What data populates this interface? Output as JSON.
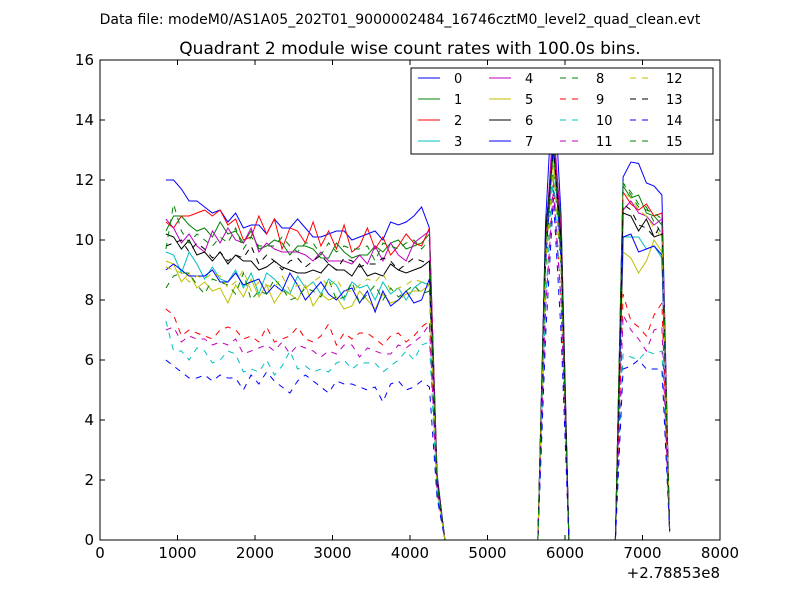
{
  "suptitle": "Data file: modeM0/AS1A05_202T01_9000002484_16746cztM0_level2_quad_clean.evt",
  "chart_data": {
    "type": "line",
    "title": "Quadrant 2 module wise count rates with 100.0s bins.",
    "xlabel": "",
    "ylabel": "",
    "x_offset_label": "+2.78853e8",
    "xlim": [
      0,
      8000
    ],
    "ylim": [
      0,
      16
    ],
    "xticks": [
      0,
      1000,
      2000,
      3000,
      4000,
      5000,
      6000,
      7000,
      8000
    ],
    "yticks": [
      0,
      2,
      4,
      6,
      8,
      10,
      12,
      14,
      16
    ],
    "legend_position": "top-right",
    "x": [
      850,
      950,
      1050,
      1150,
      1250,
      1350,
      1450,
      1550,
      1650,
      1750,
      1850,
      1950,
      2050,
      2150,
      2250,
      2350,
      2450,
      2550,
      2650,
      2750,
      2850,
      2950,
      3050,
      3150,
      3250,
      3350,
      3450,
      3550,
      3650,
      3750,
      3850,
      3950,
      4050,
      4150,
      4250,
      4350,
      4450,
      4550,
      4650,
      4750,
      4850,
      4950,
      5050,
      5150,
      5250,
      5350,
      5450,
      5550,
      5650,
      5750,
      5850,
      5950,
      6050,
      6150,
      6250,
      6350,
      6450,
      6550,
      6650,
      6750,
      6850,
      6950,
      7050,
      7150,
      7250,
      7350
    ],
    "series": [
      {
        "name": "0",
        "color": "#0000ff",
        "dash": "solid",
        "values": [
          12.0,
          12.0,
          11.7,
          11.3,
          11.3,
          11.1,
          10.9,
          11.0,
          10.6,
          10.9,
          10.4,
          10.5,
          10.5,
          10.2,
          10.7,
          10.4,
          10.4,
          10.7,
          10.4,
          10.1,
          10.1,
          10.2,
          10.3,
          10.3,
          10.0,
          10.1,
          10.2,
          10.3,
          10.0,
          10.6,
          10.5,
          10.6,
          10.8,
          11.1,
          10.4,
          2.2,
          0.0,
          0.0,
          0.0,
          0.0,
          0.0,
          0.0,
          0.0,
          0.0,
          0.0,
          0.0,
          0.0,
          0.0,
          0.0,
          10.6,
          15.5,
          10.8,
          0.0,
          0.0,
          0.0,
          0.0,
          0.0,
          0.0,
          0.0,
          12.1,
          12.6,
          12.55,
          11.9,
          11.8,
          11.5,
          0.35
        ]
      },
      {
        "name": "1",
        "color": "#008000",
        "dash": "solid",
        "values": [
          10.3,
          10.8,
          10.8,
          10.5,
          10.3,
          10.4,
          10.1,
          10.6,
          10.2,
          10.3,
          9.9,
          10.3,
          9.7,
          9.8,
          10.0,
          9.9,
          9.5,
          9.8,
          9.8,
          9.7,
          9.4,
          9.4,
          9.9,
          9.6,
          9.4,
          9.5,
          9.5,
          9.8,
          9.6,
          9.9,
          10.0,
          9.7,
          9.8,
          9.9,
          10.2,
          2.0,
          0.0,
          0.0,
          0.0,
          0.0,
          0.0,
          0.0,
          0.0,
          0.0,
          0.0,
          0.0,
          0.0,
          0.0,
          0.0,
          10.1,
          13.5,
          10.6,
          0.0,
          0.0,
          0.0,
          0.0,
          0.0,
          0.0,
          0.0,
          11.8,
          11.4,
          11.5,
          10.9,
          10.8,
          10.5,
          0.3
        ]
      },
      {
        "name": "2",
        "color": "#ff0000",
        "dash": "solid",
        "values": [
          10.6,
          10.4,
          10.8,
          10.8,
          10.9,
          11.0,
          10.8,
          11.0,
          10.5,
          10.7,
          10.0,
          10.1,
          10.8,
          10.2,
          10.7,
          9.7,
          10.4,
          10.3,
          9.9,
          10.6,
          9.8,
          10.3,
          9.7,
          10.5,
          9.6,
          9.8,
          10.4,
          9.7,
          10.1,
          9.5,
          9.8,
          10.2,
          9.9,
          9.8,
          10.4,
          2.1,
          0.0,
          0.0,
          0.0,
          0.0,
          0.0,
          0.0,
          0.0,
          0.0,
          0.0,
          0.0,
          0.0,
          0.0,
          0.0,
          10.0,
          13.5,
          10.3,
          0.0,
          0.0,
          0.0,
          0.0,
          0.0,
          0.0,
          0.0,
          11.6,
          11.2,
          11.0,
          11.2,
          10.8,
          10.9,
          0.3
        ]
      },
      {
        "name": "3",
        "color": "#00bfbf",
        "dash": "solid",
        "values": [
          9.6,
          9.5,
          8.9,
          9.6,
          9.2,
          8.7,
          9.1,
          8.7,
          8.6,
          9.0,
          8.4,
          8.9,
          8.2,
          8.9,
          8.7,
          8.4,
          8.2,
          8.8,
          8.4,
          8.6,
          8.2,
          8.7,
          8.5,
          8.0,
          8.6,
          8.4,
          8.5,
          8.0,
          8.6,
          8.2,
          8.4,
          8.0,
          8.4,
          8.6,
          8.5,
          1.9,
          0.0,
          0.0,
          0.0,
          0.0,
          0.0,
          0.0,
          0.0,
          0.0,
          0.0,
          0.0,
          0.0,
          0.0,
          0.0,
          9.4,
          13.0,
          9.5,
          0.0,
          0.0,
          0.0,
          0.0,
          0.0,
          0.0,
          0.0,
          10.1,
          10.1,
          10.1,
          9.7,
          9.8,
          9.4,
          0.25
        ]
      },
      {
        "name": "4",
        "color": "#bf00bf",
        "dash": "solid",
        "values": [
          10.7,
          10.4,
          9.9,
          10.2,
          9.8,
          9.6,
          10.3,
          9.9,
          10.4,
          10.0,
          9.9,
          10.4,
          9.6,
          9.9,
          9.7,
          9.6,
          9.6,
          9.6,
          9.5,
          9.3,
          9.6,
          9.3,
          9.3,
          9.3,
          9.2,
          9.5,
          9.2,
          9.8,
          9.3,
          9.9,
          9.5,
          9.3,
          9.9,
          10.1,
          10.3,
          2.0,
          0.0,
          0.0,
          0.0,
          0.0,
          0.0,
          0.0,
          0.0,
          0.0,
          0.0,
          0.0,
          0.0,
          0.0,
          0.0,
          9.9,
          14.0,
          10.2,
          0.0,
          0.0,
          0.0,
          0.0,
          0.0,
          0.0,
          0.0,
          11.0,
          11.3,
          10.9,
          10.8,
          10.5,
          10.7,
          0.3
        ]
      },
      {
        "name": "5",
        "color": "#bfbf00",
        "dash": "solid",
        "values": [
          9.3,
          9.2,
          8.6,
          8.9,
          8.4,
          8.6,
          8.3,
          8.4,
          7.9,
          8.5,
          8.1,
          8.7,
          8.1,
          8.5,
          7.9,
          8.3,
          8.2,
          8.0,
          8.5,
          7.8,
          8.2,
          8.0,
          8.1,
          7.7,
          7.8,
          8.3,
          8.0,
          7.7,
          8.2,
          7.9,
          8.0,
          8.2,
          8.3,
          8.3,
          8.5,
          1.8,
          0.0,
          0.0,
          0.0,
          0.0,
          0.0,
          0.0,
          0.0,
          0.0,
          0.0,
          0.0,
          0.0,
          0.0,
          0.0,
          9.7,
          12.8,
          9.6,
          0.0,
          0.0,
          0.0,
          0.0,
          0.0,
          0.0,
          0.0,
          9.6,
          9.4,
          8.9,
          9.3,
          10.0,
          9.6,
          0.3
        ]
      },
      {
        "name": "6",
        "color": "#000000",
        "dash": "solid",
        "values": [
          10.2,
          10.1,
          9.7,
          10.0,
          9.5,
          9.6,
          9.3,
          9.6,
          9.2,
          9.5,
          9.3,
          9.3,
          9.0,
          9.1,
          9.3,
          9.1,
          9.0,
          8.9,
          8.9,
          9.0,
          8.9,
          9.2,
          9.0,
          9.0,
          8.8,
          9.2,
          8.8,
          8.9,
          8.8,
          9.2,
          9.0,
          8.9,
          9.0,
          9.1,
          9.3,
          2.0,
          0.0,
          0.0,
          0.0,
          0.0,
          0.0,
          0.0,
          0.0,
          0.0,
          0.0,
          0.0,
          0.0,
          0.0,
          0.0,
          10.3,
          13.0,
          10.0,
          0.0,
          0.0,
          0.0,
          0.0,
          0.0,
          0.0,
          0.0,
          10.9,
          10.8,
          10.3,
          10.7,
          10.1,
          10.2,
          0.3
        ]
      },
      {
        "name": "7",
        "color": "#0000ff",
        "dash": "solid",
        "values": [
          9.0,
          9.2,
          9.0,
          8.8,
          8.8,
          8.8,
          9.0,
          8.6,
          8.6,
          8.9,
          8.5,
          8.6,
          8.7,
          8.2,
          8.5,
          8.3,
          8.9,
          8.5,
          8.0,
          8.3,
          8.6,
          8.2,
          8.0,
          8.3,
          8.4,
          7.9,
          8.3,
          7.6,
          8.3,
          7.8,
          8.0,
          8.3,
          7.9,
          8.0,
          8.7,
          1.9,
          0.0,
          0.0,
          0.0,
          0.0,
          0.0,
          0.0,
          0.0,
          0.0,
          0.0,
          0.0,
          0.0,
          0.0,
          0.0,
          9.2,
          13.3,
          9.3,
          0.0,
          0.0,
          0.0,
          0.0,
          0.0,
          0.0,
          0.0,
          10.1,
          10.2,
          9.6,
          9.7,
          9.8,
          9.5,
          0.3
        ]
      },
      {
        "name": "8",
        "color": "#008000",
        "dash": "dashed",
        "values": [
          8.4,
          8.8,
          8.9,
          8.9,
          8.5,
          8.2,
          8.7,
          8.6,
          8.5,
          8.2,
          8.9,
          8.0,
          8.3,
          8.2,
          8.7,
          8.4,
          8.0,
          8.1,
          8.4,
          8.3,
          8.1,
          8.7,
          8.0,
          8.1,
          8.6,
          7.9,
          8.2,
          8.5,
          8.0,
          8.4,
          8.1,
          8.3,
          8.5,
          8.2,
          8.3,
          1.8,
          0.0,
          0.0,
          0.0,
          0.0,
          0.0,
          0.0,
          0.0,
          0.0,
          0.0,
          0.0,
          0.0,
          0.0,
          0.0,
          9.0,
          12.5,
          9.0,
          0.0,
          0.0,
          0.0,
          0.0,
          0.0,
          0.0,
          0.0,
          11.9,
          11.6,
          11.2,
          11.1,
          10.6,
          10.2,
          0.3
        ]
      },
      {
        "name": "9",
        "color": "#ff0000",
        "dash": "dashed",
        "values": [
          7.7,
          7.5,
          6.8,
          7.0,
          6.9,
          6.8,
          6.7,
          7.0,
          7.1,
          7.0,
          6.7,
          6.8,
          6.6,
          7.1,
          6.6,
          6.7,
          6.8,
          7.1,
          6.7,
          6.6,
          6.8,
          7.2,
          6.5,
          6.9,
          6.7,
          6.9,
          6.9,
          6.7,
          6.5,
          6.8,
          6.9,
          6.6,
          6.8,
          7.1,
          7.3,
          1.6,
          0.0,
          0.0,
          0.0,
          0.0,
          0.0,
          0.0,
          0.0,
          0.0,
          0.0,
          0.0,
          0.0,
          0.0,
          0.0,
          7.9,
          12.0,
          8.0,
          0.0,
          0.0,
          0.0,
          0.0,
          0.0,
          0.0,
          0.0,
          8.2,
          7.3,
          7.1,
          6.8,
          7.5,
          7.9,
          0.3
        ]
      },
      {
        "name": "10",
        "color": "#00bfbf",
        "dash": "dashed",
        "values": [
          7.3,
          6.3,
          6.3,
          6.0,
          6.4,
          6.3,
          5.9,
          6.0,
          6.3,
          6.2,
          5.6,
          5.7,
          5.6,
          6.0,
          5.5,
          5.8,
          6.3,
          5.7,
          5.8,
          5.6,
          5.7,
          5.6,
          5.9,
          6.0,
          5.7,
          5.9,
          5.9,
          5.9,
          5.6,
          5.8,
          6.0,
          6.3,
          6.0,
          6.5,
          6.6,
          1.5,
          0.0,
          0.0,
          0.0,
          0.0,
          0.0,
          0.0,
          0.0,
          0.0,
          0.0,
          0.0,
          0.0,
          0.0,
          0.0,
          8.0,
          12.2,
          7.9,
          0.0,
          0.0,
          0.0,
          0.0,
          0.0,
          0.0,
          0.0,
          6.2,
          6.1,
          6.0,
          6.3,
          6.2,
          6.3,
          0.3
        ]
      },
      {
        "name": "11",
        "color": "#bf00bf",
        "dash": "dashed",
        "values": [
          7.0,
          7.1,
          6.6,
          6.8,
          6.7,
          6.7,
          6.5,
          6.6,
          6.5,
          6.7,
          6.2,
          6.3,
          6.4,
          6.5,
          6.3,
          6.6,
          6.2,
          6.5,
          6.4,
          6.3,
          6.1,
          6.3,
          6.2,
          6.5,
          6.5,
          6.1,
          6.4,
          6.3,
          6.2,
          6.2,
          6.5,
          6.4,
          6.6,
          6.8,
          7.2,
          1.6,
          0.0,
          0.0,
          0.0,
          0.0,
          0.0,
          0.0,
          0.0,
          0.0,
          0.0,
          0.0,
          0.0,
          0.0,
          0.0,
          7.7,
          11.7,
          7.9,
          0.0,
          0.0,
          0.0,
          0.0,
          0.0,
          0.0,
          0.0,
          7.5,
          7.0,
          6.7,
          6.3,
          7.0,
          7.1,
          0.3
        ]
      },
      {
        "name": "12",
        "color": "#bfbf00",
        "dash": "dashed",
        "values": [
          9.1,
          9.0,
          8.9,
          8.6,
          8.8,
          8.7,
          8.9,
          8.8,
          8.4,
          8.6,
          9.0,
          8.3,
          8.6,
          8.5,
          8.4,
          8.8,
          8.3,
          8.5,
          8.4,
          8.6,
          8.8,
          8.4,
          8.7,
          8.3,
          8.3,
          8.5,
          8.7,
          8.6,
          8.9,
          8.3,
          8.4,
          8.5,
          8.7,
          8.6,
          8.5,
          1.8,
          0.0,
          0.0,
          0.0,
          0.0,
          0.0,
          0.0,
          0.0,
          0.0,
          0.0,
          0.0,
          0.0,
          0.0,
          0.0,
          9.3,
          12.5,
          9.2,
          0.0,
          0.0,
          0.0,
          0.0,
          0.0,
          0.0,
          0.0,
          11.6,
          11.4,
          11.0,
          10.8,
          10.4,
          10.1,
          0.3
        ]
      },
      {
        "name": "13",
        "color": "#000000",
        "dash": "dashed",
        "values": [
          9.8,
          9.9,
          10.0,
          9.6,
          9.9,
          9.7,
          9.4,
          9.6,
          9.3,
          9.5,
          9.4,
          9.8,
          9.2,
          9.5,
          9.3,
          9.0,
          9.3,
          9.4,
          9.1,
          9.3,
          9.5,
          9.2,
          9.0,
          9.4,
          9.3,
          9.1,
          9.2,
          9.2,
          9.4,
          9.3,
          9.0,
          9.2,
          9.4,
          9.3,
          9.2,
          1.9,
          0.0,
          0.0,
          0.0,
          0.0,
          0.0,
          0.0,
          0.0,
          0.0,
          0.0,
          0.0,
          0.0,
          0.0,
          0.0,
          10.0,
          13.2,
          10.0,
          0.0,
          0.0,
          0.0,
          0.0,
          0.0,
          0.0,
          0.0,
          11.2,
          11.0,
          10.5,
          10.4,
          10.1,
          10.6,
          0.3
        ]
      },
      {
        "name": "14",
        "color": "#0000ff",
        "dash": "dashed",
        "values": [
          6.0,
          5.8,
          5.6,
          5.4,
          5.4,
          5.5,
          5.3,
          5.5,
          5.4,
          5.4,
          5.0,
          5.5,
          5.2,
          5.6,
          5.3,
          5.1,
          4.9,
          5.3,
          5.5,
          5.3,
          5.1,
          4.9,
          5.3,
          5.2,
          5.2,
          5.1,
          5.0,
          5.1,
          4.6,
          5.2,
          5.3,
          5.0,
          5.1,
          5.3,
          5.1,
          1.4,
          0.0,
          0.0,
          0.0,
          0.0,
          0.0,
          0.0,
          0.0,
          0.0,
          0.0,
          0.0,
          0.0,
          0.0,
          0.0,
          6.8,
          11.4,
          6.9,
          0.0,
          0.0,
          0.0,
          0.0,
          0.0,
          0.0,
          0.0,
          5.7,
          5.8,
          6.0,
          5.7,
          5.7,
          5.7,
          0.3
        ]
      },
      {
        "name": "15",
        "color": "#008000",
        "dash": "dashed",
        "values": [
          9.7,
          11.2,
          10.3,
          9.9,
          10.2,
          10.0,
          9.8,
          10.1,
          9.9,
          10.4,
          9.7,
          10.1,
          9.8,
          9.8,
          9.8,
          10.1,
          9.8,
          9.6,
          9.9,
          9.9,
          9.5,
          9.9,
          9.6,
          9.8,
          9.7,
          9.7,
          9.8,
          9.3,
          9.9,
          9.8,
          9.7,
          9.9,
          10.0,
          9.7,
          10.0,
          1.9,
          0.0,
          0.0,
          0.0,
          0.0,
          0.0,
          0.0,
          0.0,
          0.0,
          0.0,
          0.0,
          0.0,
          0.0,
          0.0,
          9.9,
          13.1,
          9.7,
          0.0,
          0.0,
          0.0,
          0.0,
          0.0,
          0.0,
          0.0,
          11.9,
          11.5,
          11.1,
          11.0,
          10.9,
          10.7,
          0.3
        ]
      }
    ]
  }
}
